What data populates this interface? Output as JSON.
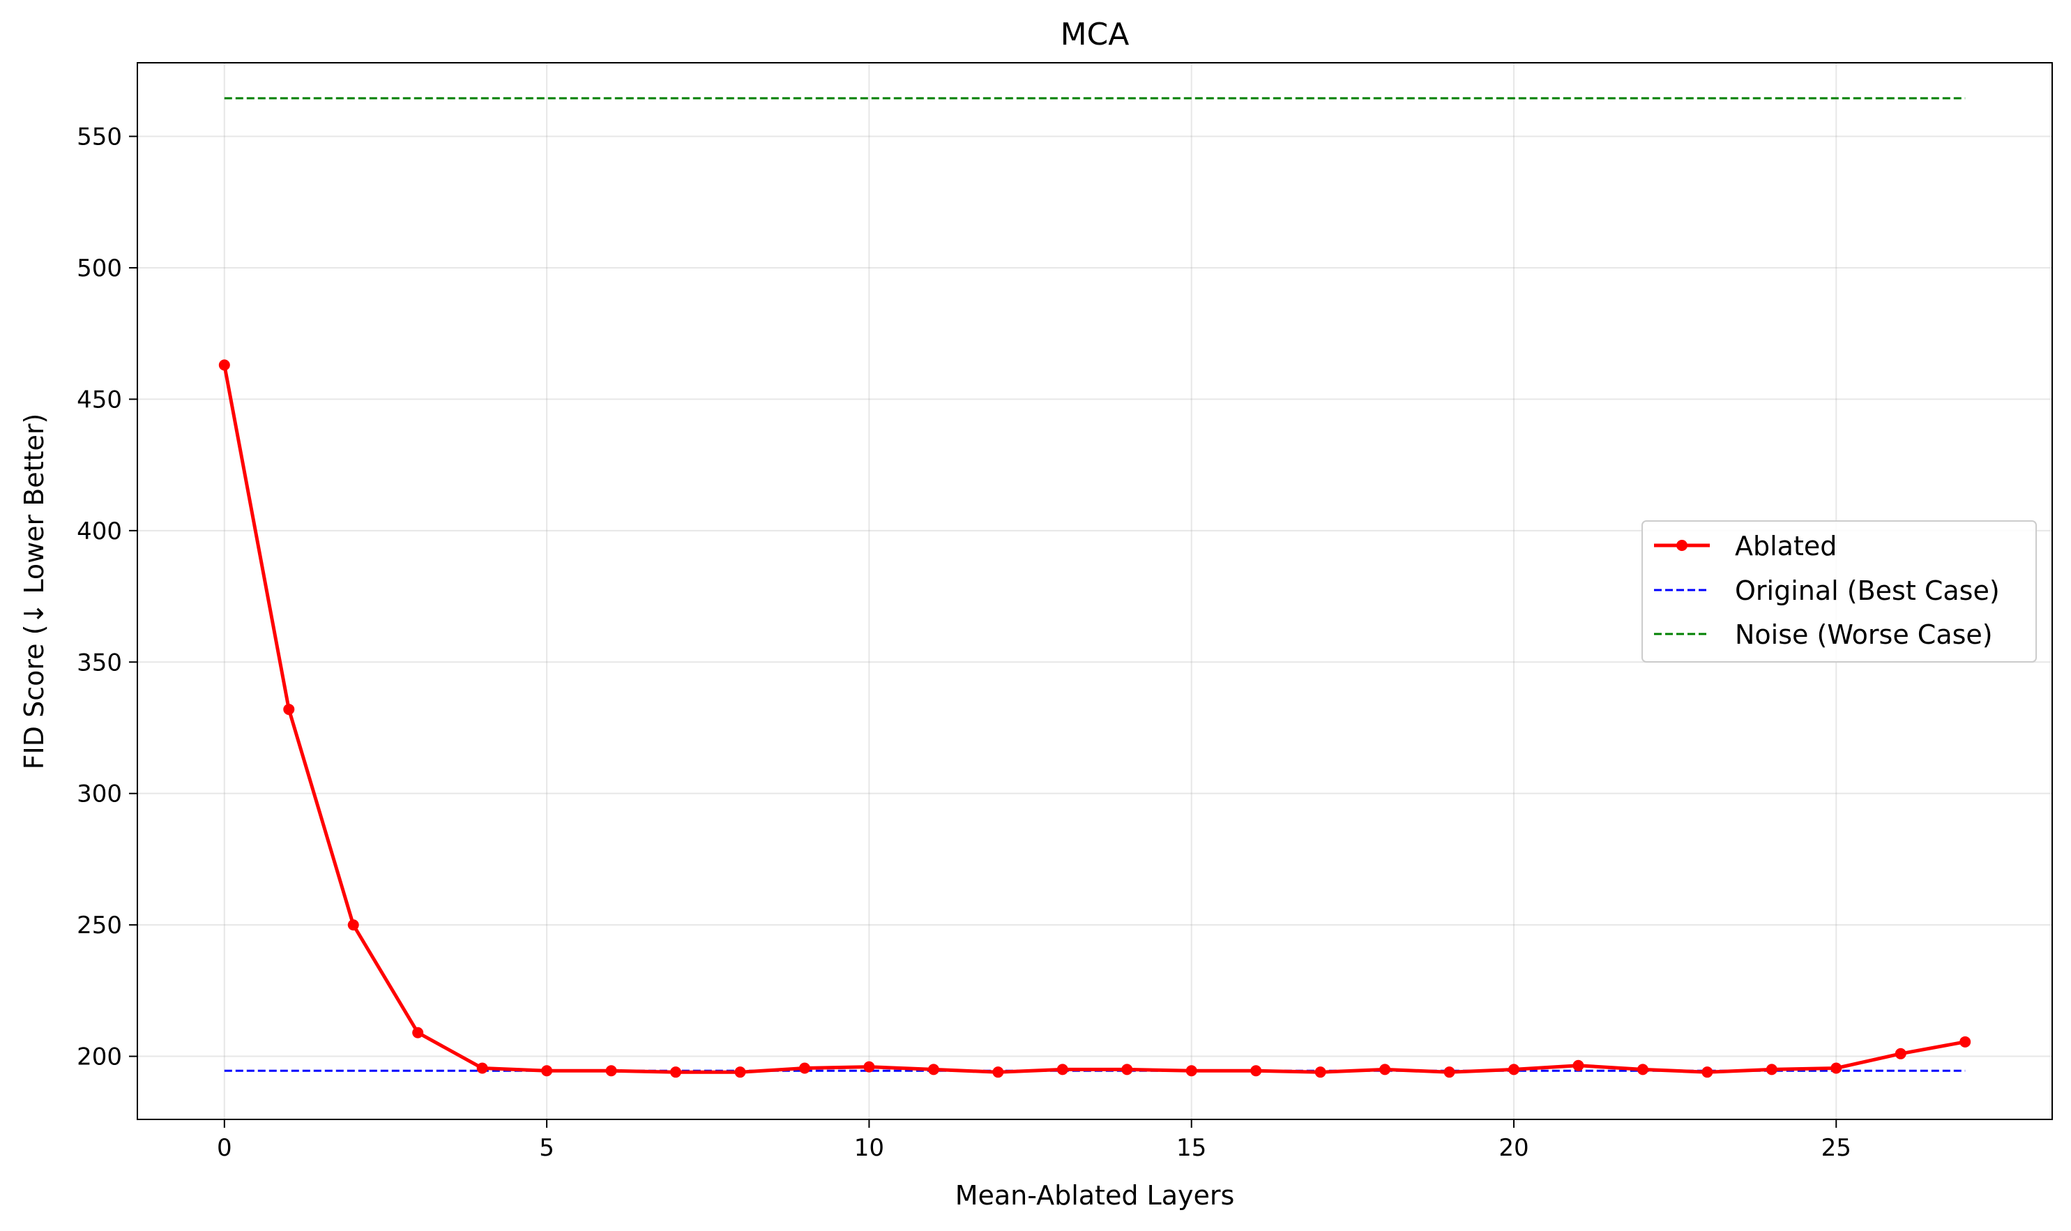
{
  "chart_data": {
    "type": "line",
    "title": "MCA",
    "xlabel": "Mean-Ablated Layers",
    "ylabel": "FID Score (↓ Lower Better)",
    "xlim": [
      -1.35,
      28.35
    ],
    "ylim": [
      176,
      578
    ],
    "x_ticks": [
      0,
      5,
      10,
      15,
      20,
      25
    ],
    "y_ticks": [
      200,
      250,
      300,
      350,
      400,
      450,
      500,
      550
    ],
    "grid": true,
    "legend_position": "center-right",
    "series": [
      {
        "name": "Ablated",
        "color": "#ff0000",
        "style": "solid-with-markers",
        "x": [
          0,
          1,
          2,
          3,
          4,
          5,
          6,
          7,
          8,
          9,
          10,
          11,
          12,
          13,
          14,
          15,
          16,
          17,
          18,
          19,
          20,
          21,
          22,
          23,
          24,
          25,
          26,
          27
        ],
        "values": [
          463,
          332,
          250,
          209,
          195.5,
          194.5,
          194.5,
          194,
          194,
          195.5,
          196,
          195,
          194,
          195,
          195,
          194.5,
          194.5,
          194,
          195,
          194,
          195,
          196.5,
          195,
          194,
          195,
          195.5,
          201,
          205.5
        ]
      },
      {
        "name": "Original (Best Case)",
        "color": "#0000ff",
        "style": "dashed",
        "x": [
          0,
          27
        ],
        "values": [
          194.5,
          194.5
        ]
      },
      {
        "name": "Noise (Worse Case)",
        "color": "#008000",
        "style": "dashed",
        "x": [
          0,
          27
        ],
        "values": [
          564.5,
          564.5
        ]
      }
    ]
  }
}
